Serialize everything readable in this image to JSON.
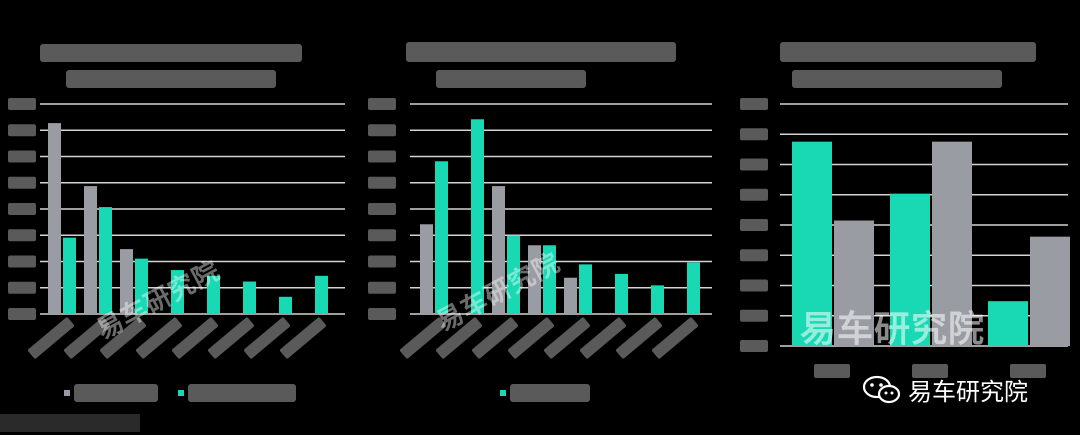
{
  "colors": {
    "teal": "#19d9b4",
    "gray": "#9a9ca3",
    "grid": "#d4d4d4",
    "label_block": "#5a5a5a"
  },
  "watermark": {
    "text": "易车研究院"
  },
  "brand": {
    "text": "易车研究院",
    "icon": "wechat-icon"
  },
  "chart_data": [
    {
      "type": "bar",
      "title": "",
      "series": [
        {
          "name": "",
          "color": "#9a9ca3",
          "values": [
            100,
            67,
            34,
            0,
            0,
            0,
            0,
            0
          ]
        },
        {
          "name": "",
          "color": "#19d9b4",
          "values": [
            40,
            56,
            29,
            23,
            20,
            17,
            9,
            20
          ]
        }
      ],
      "ylim": [
        0,
        110
      ]
    },
    {
      "type": "bar",
      "title": "",
      "series": [
        {
          "name": "",
          "color": "#9a9ca3",
          "values": [
            47,
            0,
            67,
            36,
            19,
            0,
            0,
            0
          ]
        },
        {
          "name": "",
          "color": "#19d9b4",
          "values": [
            80,
            102,
            41,
            36,
            26,
            21,
            15,
            27
          ]
        }
      ],
      "ylim": [
        0,
        110
      ]
    },
    {
      "type": "bar",
      "title": "",
      "series": [
        {
          "name": "",
          "color": "#19d9b4",
          "values": [
            114,
            85,
            25
          ]
        },
        {
          "name": "",
          "color": "#9a9ca3",
          "values": [
            70,
            114,
            61
          ]
        }
      ],
      "ylim": [
        0,
        135
      ]
    }
  ]
}
